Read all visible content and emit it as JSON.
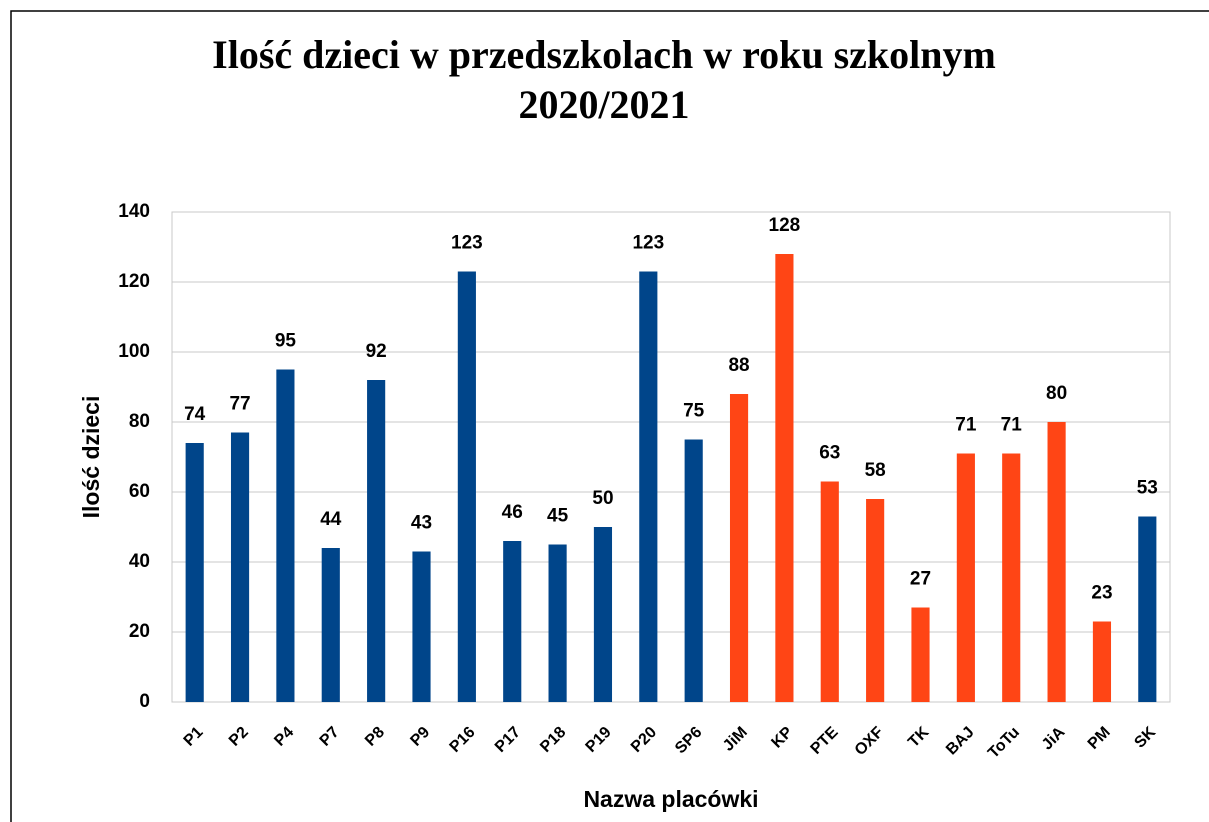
{
  "chart_data": {
    "type": "bar",
    "title": "Ilość dzieci w przedszkolach w roku szkolnym 2020/2021",
    "x_label": "Nazwa placówki",
    "y_label": "Ilość dzieci",
    "categories": [
      "P1",
      "P2",
      "P4",
      "P7",
      "P8",
      "P9",
      "P16",
      "P17",
      "P18",
      "P19",
      "P20",
      "SP6",
      "JiM",
      "KP",
      "PTE",
      "OXF",
      "TK",
      "BAJ",
      "ToTu",
      "JiA",
      "PM",
      "SK"
    ],
    "values": [
      74,
      77,
      95,
      44,
      92,
      43,
      123,
      46,
      45,
      50,
      123,
      75,
      88,
      128,
      63,
      58,
      27,
      71,
      71,
      80,
      23,
      53
    ],
    "colors": [
      "#00458a",
      "#00458a",
      "#00458a",
      "#00458a",
      "#00458a",
      "#00458a",
      "#00458a",
      "#00458a",
      "#00458a",
      "#00458a",
      "#00458a",
      "#00458a",
      "#ff4515",
      "#ff4515",
      "#ff4515",
      "#ff4515",
      "#ff4515",
      "#ff4515",
      "#ff4515",
      "#ff4515",
      "#ff4515",
      "#00458a"
    ],
    "ylim": [
      0,
      140
    ],
    "yticks": [
      0,
      20,
      40,
      60,
      80,
      100,
      120,
      140
    ],
    "grid": true
  }
}
